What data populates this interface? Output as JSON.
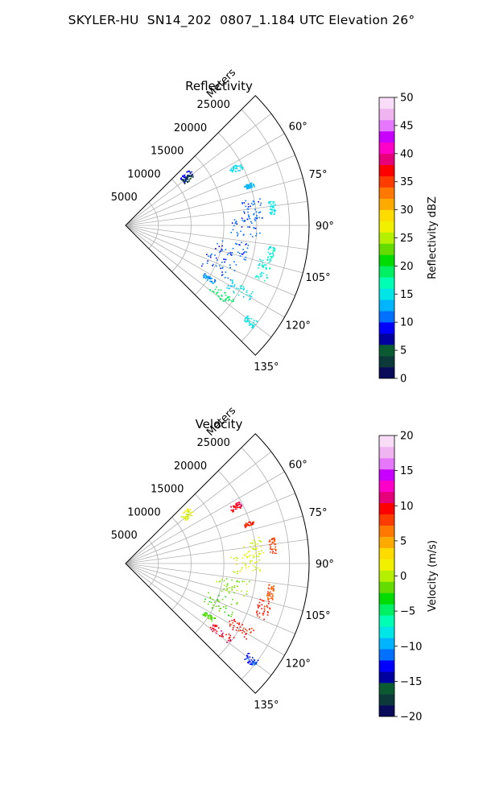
{
  "suptitle": "SKYLER-HU  SN14_202  0807_1.184 UTC Elevation 26°",
  "chart_data": [
    {
      "type": "polar-ppi",
      "title": "Reflectivity",
      "radial_label": "Meters",
      "r_ticks": [
        "5000",
        "10000",
        "15000",
        "20000",
        "25000"
      ],
      "r_tick_values": [
        5000,
        10000,
        15000,
        20000,
        25000
      ],
      "r_max": 28000,
      "theta_range_deg": [
        45,
        135
      ],
      "theta_gridlines_deg": [
        45,
        52.5,
        60,
        67.5,
        75,
        82.5,
        90,
        97.5,
        105,
        112.5,
        120,
        127.5,
        135
      ],
      "theta_tick_labels": [
        "60°",
        "75°",
        "90°",
        "105°",
        "120°",
        "135°"
      ],
      "theta_tick_values": [
        60,
        75,
        90,
        105,
        120,
        135
      ],
      "grid": true,
      "colorbar": {
        "label": "Reflectivity dBZ",
        "range": [
          0,
          50
        ],
        "ticks": [
          "0",
          "5",
          "10",
          "15",
          "20",
          "25",
          "30",
          "35",
          "40",
          "45",
          "50"
        ],
        "tick_values": [
          0,
          5,
          10,
          15,
          20,
          25,
          30,
          35,
          40,
          45,
          50
        ],
        "step": 2.5,
        "colors": [
          "#0a0a5a",
          "#0c3a3a",
          "#0a5a32",
          "#0000a0",
          "#0000ff",
          "#0070ff",
          "#00b4ff",
          "#00e6e6",
          "#00ffb4",
          "#00f064",
          "#00dc00",
          "#64dc00",
          "#b4f000",
          "#f0f000",
          "#ffdc00",
          "#ffaa00",
          "#ff7800",
          "#ff3c00",
          "#ff0000",
          "#e6007a",
          "#ff00c8",
          "#c800ff",
          "#e678ff",
          "#f0b4f0",
          "#f8dcf8"
        ]
      },
      "clusters": [
        {
          "r": [
            11000,
            13000
          ],
          "theta": [
            48,
            53
          ],
          "value": 11
        },
        {
          "r": [
            11000,
            12800
          ],
          "theta": [
            50,
            54.5
          ],
          "value": 4
        },
        {
          "r": [
            18000,
            20000
          ],
          "theta": [
            61,
            64
          ],
          "value": 18
        },
        {
          "r": [
            19000,
            20500
          ],
          "theta": [
            71,
            73
          ],
          "value": 16
        },
        {
          "r": [
            18000,
            21000
          ],
          "theta": [
            78,
            87
          ],
          "value": 13
        },
        {
          "r": [
            22000,
            23000
          ],
          "theta": [
            80,
            86
          ],
          "value": 19
        },
        {
          "r": [
            16000,
            20500
          ],
          "theta": [
            86,
            95
          ],
          "value": 13
        },
        {
          "r": [
            14000,
            19000
          ],
          "theta": [
            98,
            106
          ],
          "value": 13
        },
        {
          "r": [
            22000,
            23000
          ],
          "theta": [
            98,
            104
          ],
          "value": 20
        },
        {
          "r": [
            13000,
            18000
          ],
          "theta": [
            108,
            118
          ],
          "value": 13
        },
        {
          "r": [
            21000,
            23000
          ],
          "theta": [
            104,
            112
          ],
          "value": 20
        },
        {
          "r": [
            18000,
            22000
          ],
          "theta": [
            117,
            122
          ],
          "value": 18
        },
        {
          "r": [
            16000,
            20000
          ],
          "theta": [
            124,
            128
          ],
          "value": 24
        },
        {
          "r": [
            23000,
            25000
          ],
          "theta": [
            126,
            129
          ],
          "value": 19
        },
        {
          "r": [
            14000,
            16000
          ],
          "theta": [
            121,
            124
          ],
          "value": 15
        }
      ]
    },
    {
      "type": "polar-ppi",
      "title": "Velocity",
      "radial_label": "Meters",
      "r_ticks": [
        "5000",
        "10000",
        "15000",
        "20000",
        "25000"
      ],
      "r_tick_values": [
        5000,
        10000,
        15000,
        20000,
        25000
      ],
      "r_max": 28000,
      "theta_range_deg": [
        45,
        135
      ],
      "theta_gridlines_deg": [
        45,
        52.5,
        60,
        67.5,
        75,
        82.5,
        90,
        97.5,
        105,
        112.5,
        120,
        127.5,
        135
      ],
      "theta_tick_labels": [
        "60°",
        "75°",
        "90°",
        "105°",
        "120°",
        "135°"
      ],
      "theta_tick_values": [
        60,
        75,
        90,
        105,
        120,
        135
      ],
      "grid": true,
      "colorbar": {
        "label": "Velocity (m/s)",
        "range": [
          -20,
          20
        ],
        "ticks": [
          "−20",
          "−15",
          "−10",
          "−5",
          "0",
          "5",
          "10",
          "15",
          "20"
        ],
        "tick_values": [
          -20,
          -15,
          -10,
          -5,
          0,
          5,
          10,
          15,
          20
        ],
        "step": 1.6,
        "colors": [
          "#0a0a5a",
          "#0c3a3a",
          "#0a5a32",
          "#0000a0",
          "#0000ff",
          "#0070ff",
          "#00b4ff",
          "#00e6e6",
          "#00ffb4",
          "#00f064",
          "#00dc00",
          "#64dc00",
          "#b4f000",
          "#f0f000",
          "#ffdc00",
          "#ffaa00",
          "#ff7800",
          "#ff3c00",
          "#ff0000",
          "#e6007a",
          "#ff00c8",
          "#c800ff",
          "#e678ff",
          "#f0b4f0",
          "#f8dcf8"
        ]
      },
      "clusters": [
        {
          "r": [
            11000,
            13000
          ],
          "theta": [
            48,
            54.5
          ],
          "value": 1
        },
        {
          "r": [
            18000,
            20000
          ],
          "theta": [
            61,
            64
          ],
          "value": 10
        },
        {
          "r": [
            19000,
            20500
          ],
          "theta": [
            71,
            73
          ],
          "value": 9
        },
        {
          "r": [
            18000,
            21000
          ],
          "theta": [
            78,
            87
          ],
          "value": 1
        },
        {
          "r": [
            22000,
            23000
          ],
          "theta": [
            80,
            86
          ],
          "value": 8
        },
        {
          "r": [
            16000,
            20500
          ],
          "theta": [
            86,
            95
          ],
          "value": 1
        },
        {
          "r": [
            14000,
            19000
          ],
          "theta": [
            98,
            106
          ],
          "value": -1
        },
        {
          "r": [
            22000,
            23000
          ],
          "theta": [
            98,
            104
          ],
          "value": 7
        },
        {
          "r": [
            13000,
            18000
          ],
          "theta": [
            108,
            118
          ],
          "value": -2
        },
        {
          "r": [
            21000,
            23000
          ],
          "theta": [
            104,
            112
          ],
          "value": 9
        },
        {
          "r": [
            18000,
            22000
          ],
          "theta": [
            117,
            122
          ],
          "value": 9
        },
        {
          "r": [
            16000,
            20000
          ],
          "theta": [
            124,
            128
          ],
          "value": 10
        },
        {
          "r": [
            23000,
            25000
          ],
          "theta": [
            126,
            129
          ],
          "value": -12
        },
        {
          "r": [
            14000,
            16000
          ],
          "theta": [
            121,
            124
          ],
          "value": -2
        }
      ]
    }
  ]
}
